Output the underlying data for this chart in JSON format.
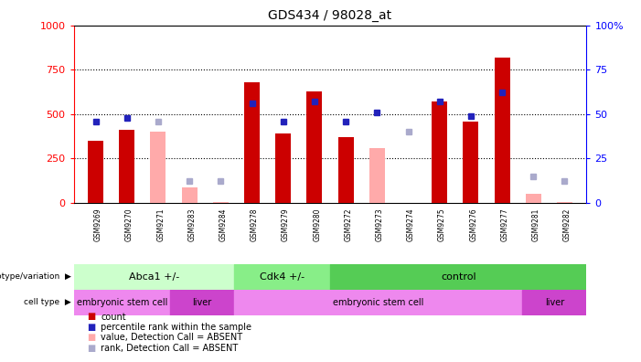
{
  "title": "GDS434 / 98028_at",
  "samples": [
    "GSM9269",
    "GSM9270",
    "GSM9271",
    "GSM9283",
    "GSM9284",
    "GSM9278",
    "GSM9279",
    "GSM9280",
    "GSM9272",
    "GSM9273",
    "GSM9274",
    "GSM9275",
    "GSM9276",
    "GSM9277",
    "GSM9281",
    "GSM9282"
  ],
  "count_values": [
    350,
    410,
    null,
    null,
    null,
    680,
    390,
    630,
    370,
    null,
    null,
    570,
    460,
    820,
    null,
    null
  ],
  "rank_values": [
    46,
    48,
    null,
    null,
    null,
    56,
    46,
    57,
    46,
    51,
    null,
    57,
    49,
    62,
    null,
    null
  ],
  "absent_count": [
    null,
    null,
    400,
    85,
    5,
    null,
    null,
    null,
    null,
    310,
    null,
    null,
    null,
    null,
    50,
    5
  ],
  "absent_rank": [
    null,
    null,
    46,
    12,
    12,
    null,
    null,
    null,
    null,
    null,
    40,
    null,
    null,
    null,
    15,
    12
  ],
  "ylim_left": [
    0,
    1000
  ],
  "ylim_right": [
    0,
    100
  ],
  "yticks_left": [
    0,
    250,
    500,
    750,
    1000
  ],
  "yticks_right": [
    0,
    25,
    50,
    75,
    100
  ],
  "genotype_groups": [
    {
      "label": "Abca1 +/-",
      "start": 0,
      "end": 5,
      "color": "#ccffcc"
    },
    {
      "label": "Cdk4 +/-",
      "start": 5,
      "end": 8,
      "color": "#88ee88"
    },
    {
      "label": "control",
      "start": 8,
      "end": 16,
      "color": "#55cc55"
    }
  ],
  "celltype_groups": [
    {
      "label": "embryonic stem cell",
      "start": 0,
      "end": 3,
      "color": "#ee88ee"
    },
    {
      "label": "liver",
      "start": 3,
      "end": 5,
      "color": "#cc44cc"
    },
    {
      "label": "embryonic stem cell",
      "start": 5,
      "end": 14,
      "color": "#ee88ee"
    },
    {
      "label": "liver",
      "start": 14,
      "end": 16,
      "color": "#cc44cc"
    }
  ],
  "bar_color_count": "#cc0000",
  "bar_color_rank": "#2222bb",
  "bar_color_absent_count": "#ffaaaa",
  "bar_color_absent_rank": "#aaaacc",
  "legend_items": [
    {
      "label": "count",
      "color": "#cc0000"
    },
    {
      "label": "percentile rank within the sample",
      "color": "#2222bb"
    },
    {
      "label": "value, Detection Call = ABSENT",
      "color": "#ffaaaa"
    },
    {
      "label": "rank, Detection Call = ABSENT",
      "color": "#aaaacc"
    }
  ],
  "rank_scale": 10,
  "marker_size": 5
}
